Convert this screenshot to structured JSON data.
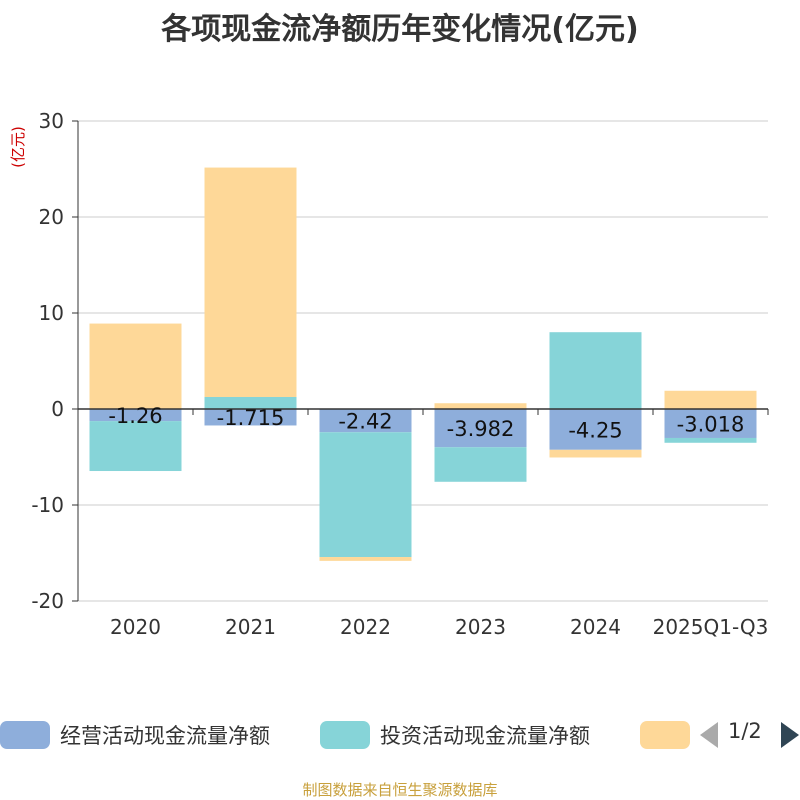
{
  "chart_data": {
    "type": "bar",
    "stacked": true,
    "title": "各项现金流净额历年变化情况(亿元)",
    "ylabel": "(亿元)",
    "categories": [
      "2020",
      "2021",
      "2022",
      "2023",
      "2024",
      "2025Q1-Q3"
    ],
    "ylim": [
      -20,
      30
    ],
    "yticks": [
      30,
      20,
      10,
      0,
      -10,
      -20
    ],
    "ytick_labels": [
      "30",
      "20",
      "10",
      "0",
      "-10",
      "-20"
    ],
    "series": [
      {
        "name": "经营活动现金流量净额",
        "color": "#8eaedb",
        "values": [
          -1.26,
          -1.715,
          -2.42,
          -3.982,
          -4.25,
          -3.018
        ],
        "labels": [
          "-1.26",
          "-1.715",
          "-2.42",
          "-3.982",
          "-4.25",
          "-3.018"
        ]
      },
      {
        "name": "投资活动现金流量净额",
        "color": "#86d4d8",
        "values": [
          -5.2,
          1.25,
          -13.0,
          -3.6,
          8.0,
          -0.5
        ]
      },
      {
        "name": "",
        "color": "#fed898",
        "values": [
          8.9,
          23.9,
          -0.4,
          0.6,
          -0.8,
          1.9
        ]
      }
    ]
  },
  "legend": {
    "items": [
      {
        "label": "经营活动现金流量净额",
        "color": "#8eaedb"
      },
      {
        "label": "投资活动现金流量净额",
        "color": "#86d4d8"
      },
      {
        "label": "",
        "color": "#fed898"
      }
    ],
    "page_text": "1/2"
  },
  "source": "制图数据来自恒生聚源数据库",
  "colors": {
    "axis": "#333333",
    "grid": "#cccccc",
    "ylabel": "#cc0000"
  }
}
